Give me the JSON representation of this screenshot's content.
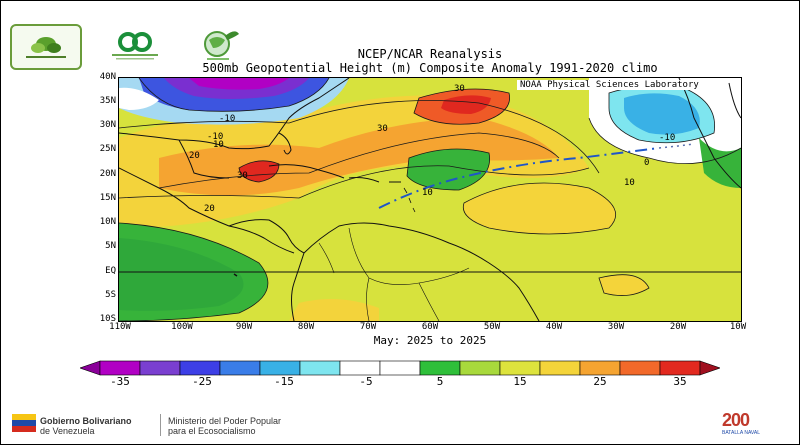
{
  "header": {
    "title_line1": "NCEP/NCAR Reanalysis",
    "title_line2": "500mb Geopotential Height (m) Composite Anomaly 1991-2020 climo",
    "credit": "NOAA Physical Sciences Laboratory"
  },
  "map": {
    "lat_labels": [
      "40N",
      "35N",
      "30N",
      "25N",
      "20N",
      "15N",
      "10N",
      "5N",
      "EQ",
      "5S",
      "10S"
    ],
    "lon_labels": [
      "110W",
      "100W",
      "90W",
      "80W",
      "70W",
      "60W",
      "50W",
      "40W",
      "30W",
      "20W",
      "10W"
    ],
    "contour_labels": [
      "30",
      "30",
      "30",
      "-10",
      "-10",
      "-10",
      "10",
      "10",
      "10",
      "20",
      "20",
      "0"
    ],
    "period": "May: 2025 to 2025"
  },
  "colorbar": {
    "labels": [
      "-35",
      "-25",
      "-15",
      "-5",
      "5",
      "15",
      "25",
      "35"
    ],
    "colors": [
      "#8a0099",
      "#b100c4",
      "#7a3fd0",
      "#3d3fe6",
      "#3a7de8",
      "#39b1e6",
      "#7ee5ef",
      "#ffffff",
      "#ffffff",
      "#2fbf3a",
      "#a8d93c",
      "#dde33d",
      "#f4d43a",
      "#f5a431",
      "#f2692a",
      "#e2291f",
      "#a0101f"
    ]
  },
  "footer": {
    "gov_line1": "Gobierno Bolivariano",
    "gov_line2": "de Venezuela",
    "ministry_line1": "Ministerio del Poder Popular",
    "ministry_line2": "para el Ecosocialismo",
    "badge_year": "200",
    "badge_caption": "BATALLA NAVAL"
  }
}
